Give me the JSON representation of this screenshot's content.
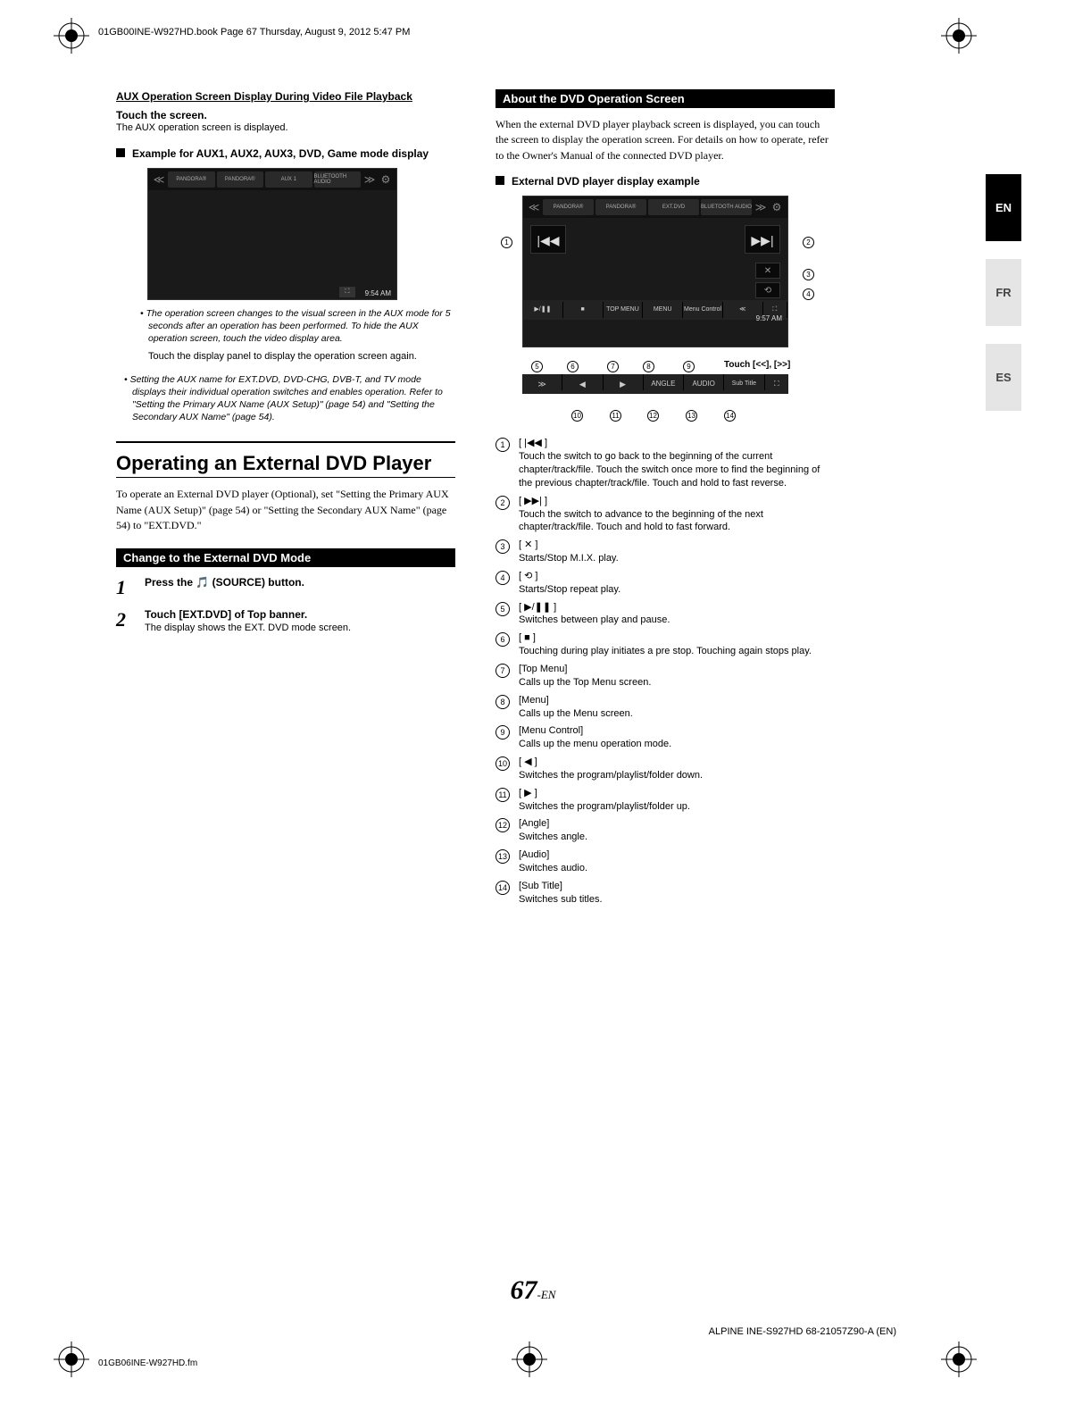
{
  "meta": {
    "book_header": "01GB00INE-W927HD.book  Page 67  Thursday, August 9, 2012  5:47 PM",
    "footer_filename": "01GB06INE-W927HD.fm",
    "footer_model": "ALPINE INE-S927HD 68-21057Z90-A (EN)",
    "page_big": "67",
    "page_suffix": "-EN"
  },
  "langtabs": [
    "EN",
    "FR",
    "ES"
  ],
  "left": {
    "heading1": "AUX Operation Screen Display During Video File Playback",
    "touch_title": "Touch the screen.",
    "touch_body": "The AUX operation screen is displayed.",
    "example_title": "Example for AUX1, AUX2, AUX3, DVD, Game mode display",
    "ss_time": "9:54 AM",
    "ss_chips": [
      "PANDORA®",
      "PANDORA®",
      "AUX 1",
      "BLUETOOTH AUDIO"
    ],
    "note1": "• The operation screen changes to the visual screen in the AUX mode for 5 seconds after an operation has been performed. To hide the AUX operation screen, touch the video display area.",
    "note2": "Touch the display panel to display the operation screen again.",
    "bullet": "• Setting the AUX name for EXT.DVD, DVD-CHG, DVB-T, and TV mode displays their individual operation switches and enables operation. Refer to \"Setting the Primary AUX Name (AUX Setup)\" (page 54) and \"Setting the Secondary AUX Name\" (page 54).",
    "h1": "Operating an External DVD Player",
    "intro": "To operate an External DVD player (Optional), set \"Setting the Primary AUX Name (AUX Setup)\" (page 54) or \"Setting the Secondary AUX Name\" (page 54) to \"EXT.DVD.\"",
    "sectionbox": "Change to the External DVD Mode",
    "step1": "Press the 🎵 (SOURCE) button.",
    "step2a": "Touch [EXT.DVD] of Top banner.",
    "step2b": "The display shows the EXT. DVD mode screen."
  },
  "right": {
    "sectionbox": "About the DVD Operation Screen",
    "intro": "When the external DVD player playback screen is displayed, you can touch the screen to display the operation screen. For details on how to operate, refer to the Owner's Manual of the connected DVD player.",
    "example_title": "External DVD player display example",
    "ss_time": "9:57 AM",
    "ss_chips": [
      "PANDORA®",
      "PANDORA®",
      "EXT.DVD",
      "BLUETOOTH AUDIO"
    ],
    "row1_labels": [
      "▶/❚❚",
      "■",
      "TOP MENU",
      "MENU",
      "Menu Control",
      "≪"
    ],
    "row2_labels": [
      "≫",
      "◀",
      "▶",
      "ANGLE",
      "AUDIO",
      "Sub Title"
    ],
    "touch_label": "Touch [<<], [>>]",
    "items": [
      {
        "n": "1",
        "sym": "[ |◀◀ ]",
        "desc": "Touch the switch to go back to the beginning of the current chapter/track/file. Touch the switch once more to find the beginning of the previous chapter/track/file. Touch and hold to fast reverse."
      },
      {
        "n": "2",
        "sym": "[ ▶▶| ]",
        "desc": "Touch the switch to advance to the beginning of the next chapter/track/file. Touch and hold to fast forward."
      },
      {
        "n": "3",
        "sym": "[ ✕ ]",
        "desc": "Starts/Stop M.I.X. play."
      },
      {
        "n": "4",
        "sym": "[ ⟲ ]",
        "desc": "Starts/Stop repeat play."
      },
      {
        "n": "5",
        "sym": "[ ▶/❚❚ ]",
        "desc": "Switches between play and pause."
      },
      {
        "n": "6",
        "sym": "[ ■ ]",
        "desc": "Touching during play initiates a pre stop. Touching again stops play."
      },
      {
        "n": "7",
        "sym": "[Top Menu]",
        "desc": "Calls up the Top Menu screen."
      },
      {
        "n": "8",
        "sym": "[Menu]",
        "desc": "Calls up the Menu screen."
      },
      {
        "n": "9",
        "sym": "[Menu Control]",
        "desc": "Calls up the menu operation mode."
      },
      {
        "n": "10",
        "sym": "[ ◀ ]",
        "desc": "Switches the program/playlist/folder down."
      },
      {
        "n": "11",
        "sym": "[ ▶ ]",
        "desc": "Switches the program/playlist/folder up."
      },
      {
        "n": "12",
        "sym": "[Angle]",
        "desc": "Switches angle."
      },
      {
        "n": "13",
        "sym": "[Audio]",
        "desc": "Switches audio."
      },
      {
        "n": "14",
        "sym": "[Sub Title]",
        "desc": "Switches sub titles."
      }
    ],
    "callouts_top": [
      "1",
      "2",
      "3",
      "4",
      "5",
      "6",
      "7",
      "8",
      "9"
    ],
    "callouts_bot": [
      "10",
      "11",
      "12",
      "13",
      "14"
    ]
  }
}
